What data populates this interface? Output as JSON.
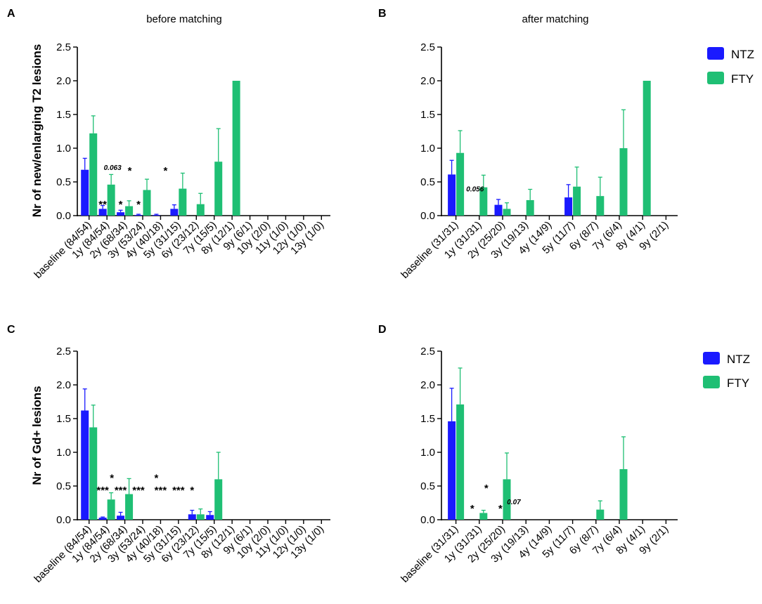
{
  "colors": {
    "ntz": "#1a1aff",
    "fty": "#1fbf74",
    "axis": "#000000"
  },
  "legend": {
    "labels": [
      "NTZ",
      "FTY"
    ]
  },
  "chart_data": [
    {
      "panel": "A",
      "type": "bar",
      "title": "before matching",
      "ylabel": "Nr of new/enlarging T2 lesions",
      "ylim": [
        0,
        2.5
      ],
      "yticks": [
        "0.0",
        "0.5",
        "1.0",
        "1.5",
        "2.0",
        "2.5"
      ],
      "categories": [
        "baseline (84/54)",
        "1y (84/54)",
        "2y (68/34)",
        "3y (53/24)",
        "4y (40/18)",
        "5y (31/15)",
        "6y (23/12)",
        "7y (15/5)",
        "8y (12/1)",
        "9y (6/1)",
        "10y (2/0)",
        "11y (1/0)",
        "12y (1/0)",
        "13y (1/0)"
      ],
      "series": [
        {
          "name": "NTZ",
          "values": [
            0.68,
            0.1,
            0.05,
            0.01,
            0.01,
            0.1,
            0,
            0,
            0,
            0,
            0,
            0,
            0,
            0
          ],
          "errors": [
            0.17,
            0.05,
            0.03,
            0.01,
            0.01,
            0.06,
            0,
            0,
            0,
            0,
            0,
            0,
            0,
            0
          ]
        },
        {
          "name": "FTY",
          "values": [
            1.22,
            0.46,
            0.14,
            0.38,
            0,
            0.4,
            0.17,
            0.8,
            2.0,
            0,
            0,
            0,
            0,
            0
          ],
          "errors": [
            0.26,
            0.15,
            0.08,
            0.16,
            0,
            0.23,
            0.16,
            0.49,
            0,
            0,
            0,
            0,
            0,
            0
          ]
        }
      ],
      "annotations": [
        {
          "text": "**",
          "cat": 1,
          "y": 0.2,
          "offset": -6
        },
        {
          "text": "0.063",
          "cat": 1,
          "y": 0.72,
          "offset": 8,
          "italic": true
        },
        {
          "text": "*",
          "cat": 2,
          "y": 0.7,
          "offset": 7
        },
        {
          "text": "*",
          "cat": 2,
          "y": 0.2,
          "offset": -6
        },
        {
          "text": "*",
          "cat": 3,
          "y": 0.2,
          "offset": -6
        },
        {
          "text": "*",
          "cat": 4,
          "y": 0.7,
          "offset": 7
        }
      ]
    },
    {
      "panel": "B",
      "type": "bar",
      "title": "after matching",
      "ylabel": "",
      "ylim": [
        0,
        2.5
      ],
      "yticks": [
        "0.0",
        "0.5",
        "1.0",
        "1.5",
        "2.0",
        "2.5"
      ],
      "categories": [
        "baseline (31/31)",
        "1y (31/31)",
        "2y (25/20)",
        "3y (19/13)",
        "4y (14/9)",
        "5y (11/7)",
        "6y (8/7)",
        "7y (6/4)",
        "8y (4/1)",
        "9y (2/1)"
      ],
      "series": [
        {
          "name": "NTZ",
          "values": [
            0.61,
            0,
            0.16,
            0,
            0,
            0.27,
            0,
            0,
            0,
            0
          ],
          "errors": [
            0.21,
            0,
            0.08,
            0,
            0,
            0.19,
            0,
            0,
            0,
            0
          ]
        },
        {
          "name": "FTY",
          "values": [
            0.93,
            0.42,
            0.1,
            0.23,
            0,
            0.43,
            0.29,
            1.0,
            2.0,
            0
          ],
          "errors": [
            0.33,
            0.18,
            0.09,
            0.16,
            0,
            0.29,
            0.28,
            0.57,
            0,
            0
          ]
        }
      ],
      "annotations": [
        {
          "text": "0.056",
          "cat": 1,
          "y": 0.4,
          "offset": -6,
          "italic": true
        }
      ]
    },
    {
      "panel": "C",
      "type": "bar",
      "title": "",
      "ylabel": "Nr of Gd+ lesions",
      "ylim": [
        0,
        2.5
      ],
      "yticks": [
        "0.0",
        "0.5",
        "1.0",
        "1.5",
        "2.0",
        "2.5"
      ],
      "categories": [
        "baseline (84/54)",
        "1y (84/54)",
        "2y (68/34)",
        "3y (53/24)",
        "4y (40/18)",
        "5y (31/15)",
        "6y (23/12)",
        "7y (15/5)",
        "8y (12/1)",
        "9y (6/1)",
        "10y (2/0)",
        "11y (1/0)",
        "12y (1/0)",
        "13y (1/0)"
      ],
      "series": [
        {
          "name": "NTZ",
          "values": [
            1.62,
            0.03,
            0.06,
            0,
            0,
            0,
            0.08,
            0.07,
            0,
            0,
            0,
            0,
            0,
            0
          ],
          "errors": [
            0.32,
            0.01,
            0.05,
            0,
            0,
            0,
            0.06,
            0.05,
            0,
            0,
            0,
            0,
            0,
            0
          ]
        },
        {
          "name": "FTY",
          "values": [
            1.37,
            0.3,
            0.38,
            0,
            0,
            0,
            0.08,
            0.6,
            0,
            0,
            0,
            0,
            0,
            0
          ],
          "errors": [
            0.33,
            0.1,
            0.23,
            0,
            0,
            0,
            0.08,
            0.4,
            0,
            0,
            0,
            0,
            0,
            0
          ]
        }
      ],
      "annotations": [
        {
          "text": "***",
          "cat": 1,
          "y": 0.47,
          "offset": -6
        },
        {
          "text": "*",
          "cat": 1,
          "y": 0.65,
          "offset": 7
        },
        {
          "text": "***",
          "cat": 2,
          "y": 0.47,
          "offset": -6
        },
        {
          "text": "***",
          "cat": 3,
          "y": 0.47,
          "offset": -6
        },
        {
          "text": "*",
          "cat": 4,
          "y": 0.65,
          "offset": -6
        },
        {
          "text": "***",
          "cat": 4,
          "y": 0.47,
          "offset": 0
        },
        {
          "text": "***",
          "cat": 5,
          "y": 0.47,
          "offset": 0
        },
        {
          "text": "*",
          "cat": 6,
          "y": 0.47,
          "offset": -6
        }
      ]
    },
    {
      "panel": "D",
      "type": "bar",
      "title": "",
      "ylabel": "",
      "ylim": [
        0,
        2.5
      ],
      "yticks": [
        "0.0",
        "0.5",
        "1.0",
        "1.5",
        "2.0",
        "2.5"
      ],
      "categories": [
        "baseline (31/31)",
        "1y (31/31)",
        "2y (25/20)",
        "3y (19/13)",
        "4y (14/9)",
        "5y (11/7)",
        "6y (8/7)",
        "7y (6/4)",
        "8y (4/1)",
        "9y (2/1)"
      ],
      "series": [
        {
          "name": "NTZ",
          "values": [
            1.46,
            0,
            0,
            0,
            0,
            0,
            0,
            0,
            0,
            0
          ],
          "errors": [
            0.49,
            0,
            0,
            0,
            0,
            0,
            0,
            0,
            0,
            0
          ]
        },
        {
          "name": "FTY",
          "values": [
            1.71,
            0.1,
            0.6,
            0,
            0,
            0,
            0.15,
            0.75,
            0,
            0
          ],
          "errors": [
            0.54,
            0.04,
            0.39,
            0,
            0,
            0,
            0.13,
            0.48,
            0,
            0
          ]
        }
      ],
      "annotations": [
        {
          "text": "*",
          "cat": 1,
          "y": 0.2,
          "offset": -10
        },
        {
          "text": "*",
          "cat": 1,
          "y": 0.5,
          "offset": 10
        },
        {
          "text": "*",
          "cat": 1,
          "y": 0.2,
          "offset": 30
        },
        {
          "text": "0.07",
          "cat": 2,
          "y": 0.27,
          "offset": 16,
          "italic": true
        }
      ]
    }
  ]
}
